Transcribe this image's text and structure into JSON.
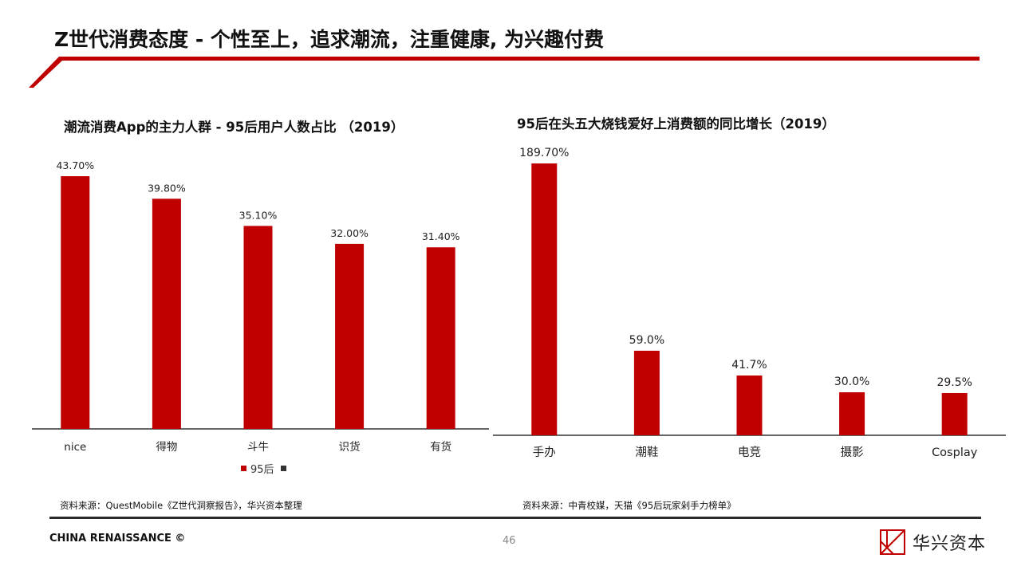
{
  "page": {
    "title": "Z世代消费态度 - 个性至上，追求潮流，注重健康, 为兴趣付费",
    "accent_color": "#c00000",
    "footer": "CHINA RENAISSANCE ©",
    "page_number": "46",
    "logo_text": "华兴资本",
    "logo_icon": "china-renaissance-logo-icon"
  },
  "charts": [
    {
      "title": "潮流消费App的主力人群 - 95后用户人数占比 （2019）",
      "source": "资料来源：QuestMobile《Z世代洞察报告》，华兴资本整理",
      "legend": [
        "95后"
      ]
    },
    {
      "title": "95后在头五大烧钱爱好上消费额的同比增长（2019）",
      "source": "资料来源：中青校媒，天猫《95后玩家剁手力榜单》"
    }
  ],
  "chart_data": [
    {
      "type": "bar",
      "title": "潮流消费App的主力人群 - 95后用户人数占比 （2019）",
      "categories": [
        "nice",
        "得物",
        "斗牛",
        "识货",
        "有货"
      ],
      "series": [
        {
          "name": "95后",
          "values": [
            43.7,
            39.8,
            35.1,
            32.0,
            31.4
          ]
        }
      ],
      "data_labels": [
        "43.70%",
        "39.80%",
        "35.10%",
        "32.00%",
        "31.40%"
      ],
      "unit": "%",
      "color": "#c00000",
      "ylim": [
        0,
        43.7
      ],
      "grid": false,
      "legend_position": "bottom"
    },
    {
      "type": "bar",
      "title": "95后在头五大烧钱爱好上消费额的同比增长（2019）",
      "categories": [
        "手办",
        "潮鞋",
        "电竞",
        "摄影",
        "Cosplay"
      ],
      "series": [
        {
          "values": [
            189.7,
            59.0,
            41.7,
            30.0,
            29.5
          ]
        }
      ],
      "data_labels": [
        "189.70%",
        "59.0%",
        "41.7%",
        "30.0%",
        "29.5%"
      ],
      "unit": "%",
      "color": "#c00000",
      "ylim": [
        0,
        189.7
      ],
      "grid": false
    }
  ]
}
